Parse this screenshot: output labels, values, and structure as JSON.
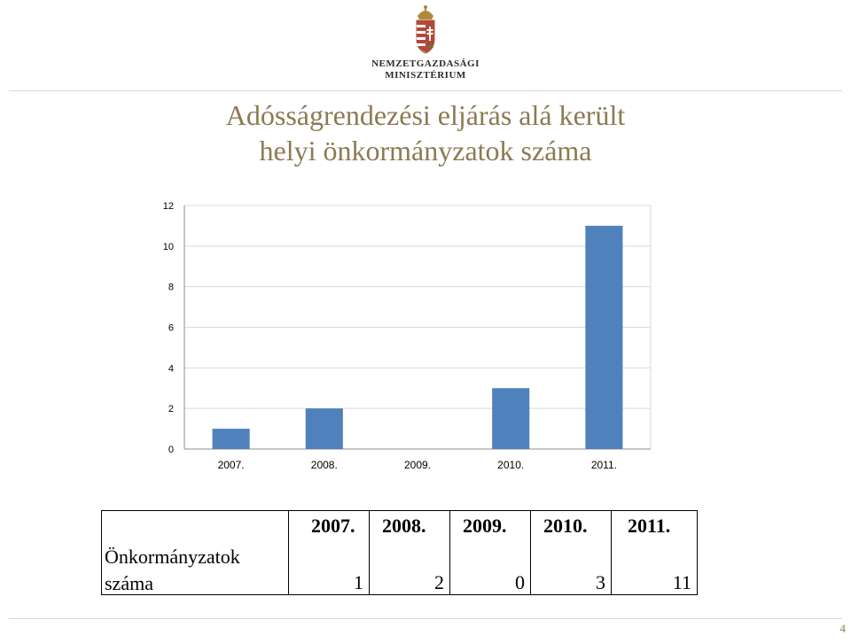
{
  "logo": {
    "line1": "NEMZETGAZDASÁGI",
    "line2": "MINISZTÉRIUM"
  },
  "slide": {
    "title_line1": "Adósságrendezési eljárás alá került",
    "title_line2": "helyi önkormányzatok száma",
    "page_number": "4"
  },
  "colors": {
    "bar": "#4f81bd",
    "title": "#8c7a52",
    "grid": "#d9d9d9"
  },
  "chart_data": {
    "type": "bar",
    "categories": [
      "2007.",
      "2008.",
      "2009.",
      "2010.",
      "2011."
    ],
    "values": [
      1,
      2,
      0,
      3,
      11
    ],
    "ylim": [
      0,
      12
    ],
    "yticks": [
      "0",
      "2",
      "4",
      "6",
      "8",
      "10",
      "12"
    ],
    "grid": true,
    "legend": "none"
  },
  "table": {
    "row_label_line1": "Önkormányzatok",
    "row_label_line2": "száma",
    "years": [
      "2007.",
      "2008.",
      "2009.",
      "2010.",
      "2011."
    ],
    "values": [
      "1",
      "2",
      "0",
      "3",
      "11"
    ]
  }
}
